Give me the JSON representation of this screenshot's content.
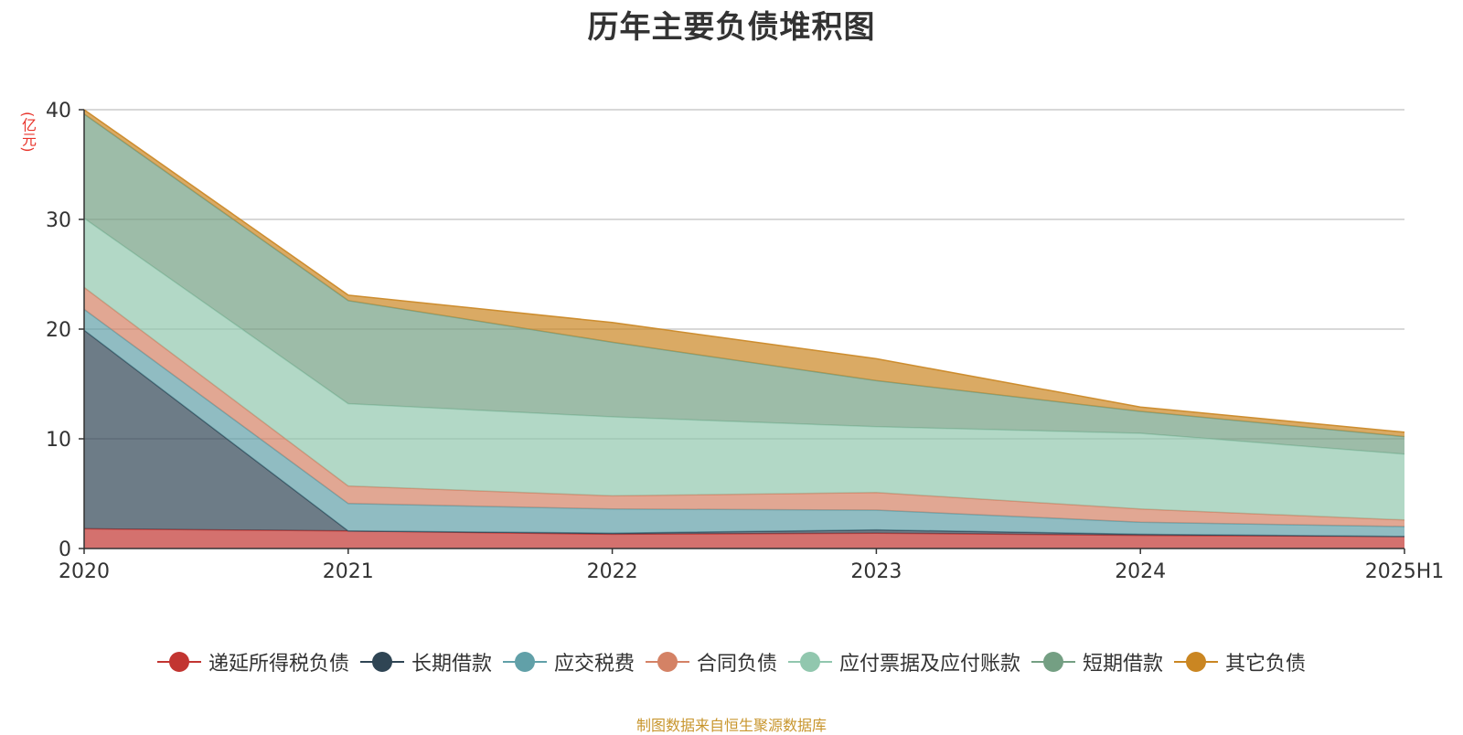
{
  "chart_data": {
    "type": "area",
    "stacked": true,
    "title": "历年主要负债堆积图",
    "unit_label": "(亿元)",
    "categories": [
      "2020",
      "2021",
      "2022",
      "2023",
      "2024",
      "2025H1"
    ],
    "ylim": [
      0,
      40
    ],
    "yticks": [
      0,
      10,
      20,
      30,
      40
    ],
    "grid": true,
    "legend_position": "bottom",
    "series": [
      {
        "name": "递延所得税负债",
        "color": "#c23531",
        "values": [
          1.8,
          1.6,
          1.3,
          1.4,
          1.2,
          1.1
        ]
      },
      {
        "name": "长期借款",
        "color": "#2f4554",
        "values": [
          18.1,
          0.0,
          0.1,
          0.3,
          0.1,
          0.0
        ]
      },
      {
        "name": "应交税费",
        "color": "#61a0a8",
        "values": [
          1.9,
          2.5,
          2.2,
          1.8,
          1.1,
          0.9
        ]
      },
      {
        "name": "合同负债",
        "color": "#d48265",
        "values": [
          2.0,
          1.6,
          1.2,
          1.6,
          1.2,
          0.6
        ]
      },
      {
        "name": "应付票据及应付账款",
        "color": "#91c7ae",
        "values": [
          6.3,
          7.5,
          7.2,
          6.0,
          6.9,
          6.0
        ]
      },
      {
        "name": "短期借款",
        "color": "#749f83",
        "values": [
          9.5,
          9.4,
          6.8,
          4.2,
          2.0,
          1.6
        ]
      },
      {
        "name": "其它负债",
        "color": "#ca8622",
        "values": [
          0.4,
          0.5,
          1.8,
          2.0,
          0.4,
          0.4
        ]
      }
    ]
  },
  "footer": "制图数据来自恒生聚源数据库"
}
